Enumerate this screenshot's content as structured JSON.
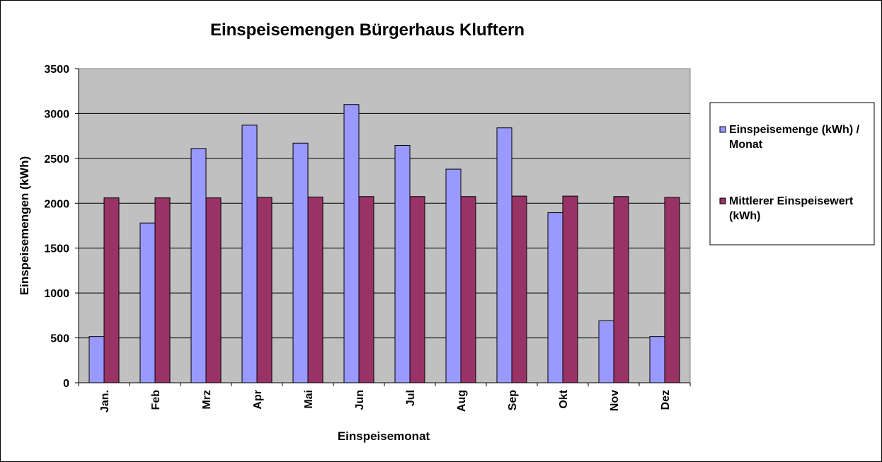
{
  "chart_data": {
    "type": "bar",
    "title": "Einspeisemengen Bürgerhaus Kluftern",
    "xlabel": "Einspeisemonat",
    "ylabel": "Einspeisemengen (kWh)",
    "ylim": [
      0,
      3500
    ],
    "yticks": [
      0,
      500,
      1000,
      1500,
      2000,
      2500,
      3000,
      3500
    ],
    "grid": true,
    "legend_position": "right",
    "categories": [
      "Jan.",
      "Feb",
      "Mrz",
      "Apr",
      "Mai",
      "Jun",
      "Jul",
      "Aug",
      "Sep",
      "Okt",
      "Nov",
      "Dez"
    ],
    "series": [
      {
        "name": "Einspeisemenge (kWh) / Monat",
        "legend_lines": [
          "Einspeisemenge (kWh) /",
          "Monat"
        ],
        "color": "#9999FF",
        "values": [
          515,
          1780,
          2610,
          2870,
          2670,
          3100,
          2645,
          2380,
          2840,
          1895,
          690,
          515
        ]
      },
      {
        "name": "Mittlerer Einspeisewert (kWh)",
        "legend_lines": [
          "Mittlerer Einspeisewert",
          "(kWh)"
        ],
        "color": "#993366",
        "values": [
          2060,
          2060,
          2060,
          2065,
          2070,
          2075,
          2075,
          2075,
          2080,
          2080,
          2075,
          2065
        ]
      }
    ],
    "plot_background": "#C0C0C0"
  }
}
